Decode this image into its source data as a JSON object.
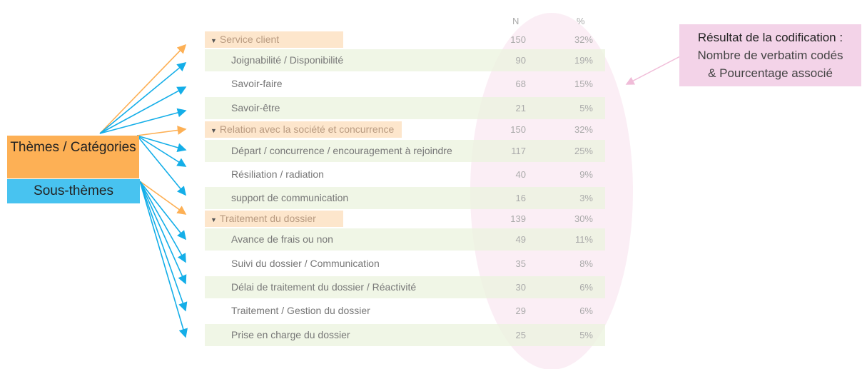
{
  "header": {
    "n": "N",
    "pct": "%"
  },
  "legend": {
    "themes": "Thèmes / Catégories",
    "sous_themes": "Sous-thèmes"
  },
  "callout": {
    "title": "Résultat de la codification :",
    "line1": "Nombre de verbatim codés",
    "line2": "& Pourcentage associé"
  },
  "colors": {
    "theme": "#fdb055",
    "sous_theme": "#48c3f0",
    "highlight": "#fbeef5",
    "callout": "#f3d3e8"
  },
  "rows": [
    {
      "type": "cat",
      "label": "Service client",
      "n": "150",
      "pct": "32%"
    },
    {
      "type": "sub",
      "label": "Joignabilité / Disponibilité",
      "n": "90",
      "pct": "19%"
    },
    {
      "type": "sub",
      "label": "Savoir-faire",
      "n": "68",
      "pct": "15%"
    },
    {
      "type": "sub",
      "label": "Savoir-être",
      "n": "21",
      "pct": "5%"
    },
    {
      "type": "cat",
      "label": "Relation avec la société et concurrence",
      "n": "150",
      "pct": "32%"
    },
    {
      "type": "sub",
      "label": "Départ / concurrence / encouragement à rejoindre",
      "n": "117",
      "pct": "25%"
    },
    {
      "type": "sub",
      "label": "Résiliation / radiation",
      "n": "40",
      "pct": "9%"
    },
    {
      "type": "sub",
      "label": "support de communication",
      "n": "16",
      "pct": "3%"
    },
    {
      "type": "cat",
      "label": "Traitement du dossier",
      "n": "139",
      "pct": "30%"
    },
    {
      "type": "sub",
      "label": "Avance de frais ou non",
      "n": "49",
      "pct": "11%"
    },
    {
      "type": "sub",
      "label": "Suivi du dossier / Communication",
      "n": "35",
      "pct": "8%"
    },
    {
      "type": "sub",
      "label": "Délai de traitement du dossier / Réactivité",
      "n": "30",
      "pct": "6%"
    },
    {
      "type": "sub",
      "label": "Traitement / Gestion du dossier",
      "n": "29",
      "pct": "6%"
    },
    {
      "type": "sub",
      "label": "Prise en charge du dossier",
      "n": "25",
      "pct": "5%"
    }
  ]
}
